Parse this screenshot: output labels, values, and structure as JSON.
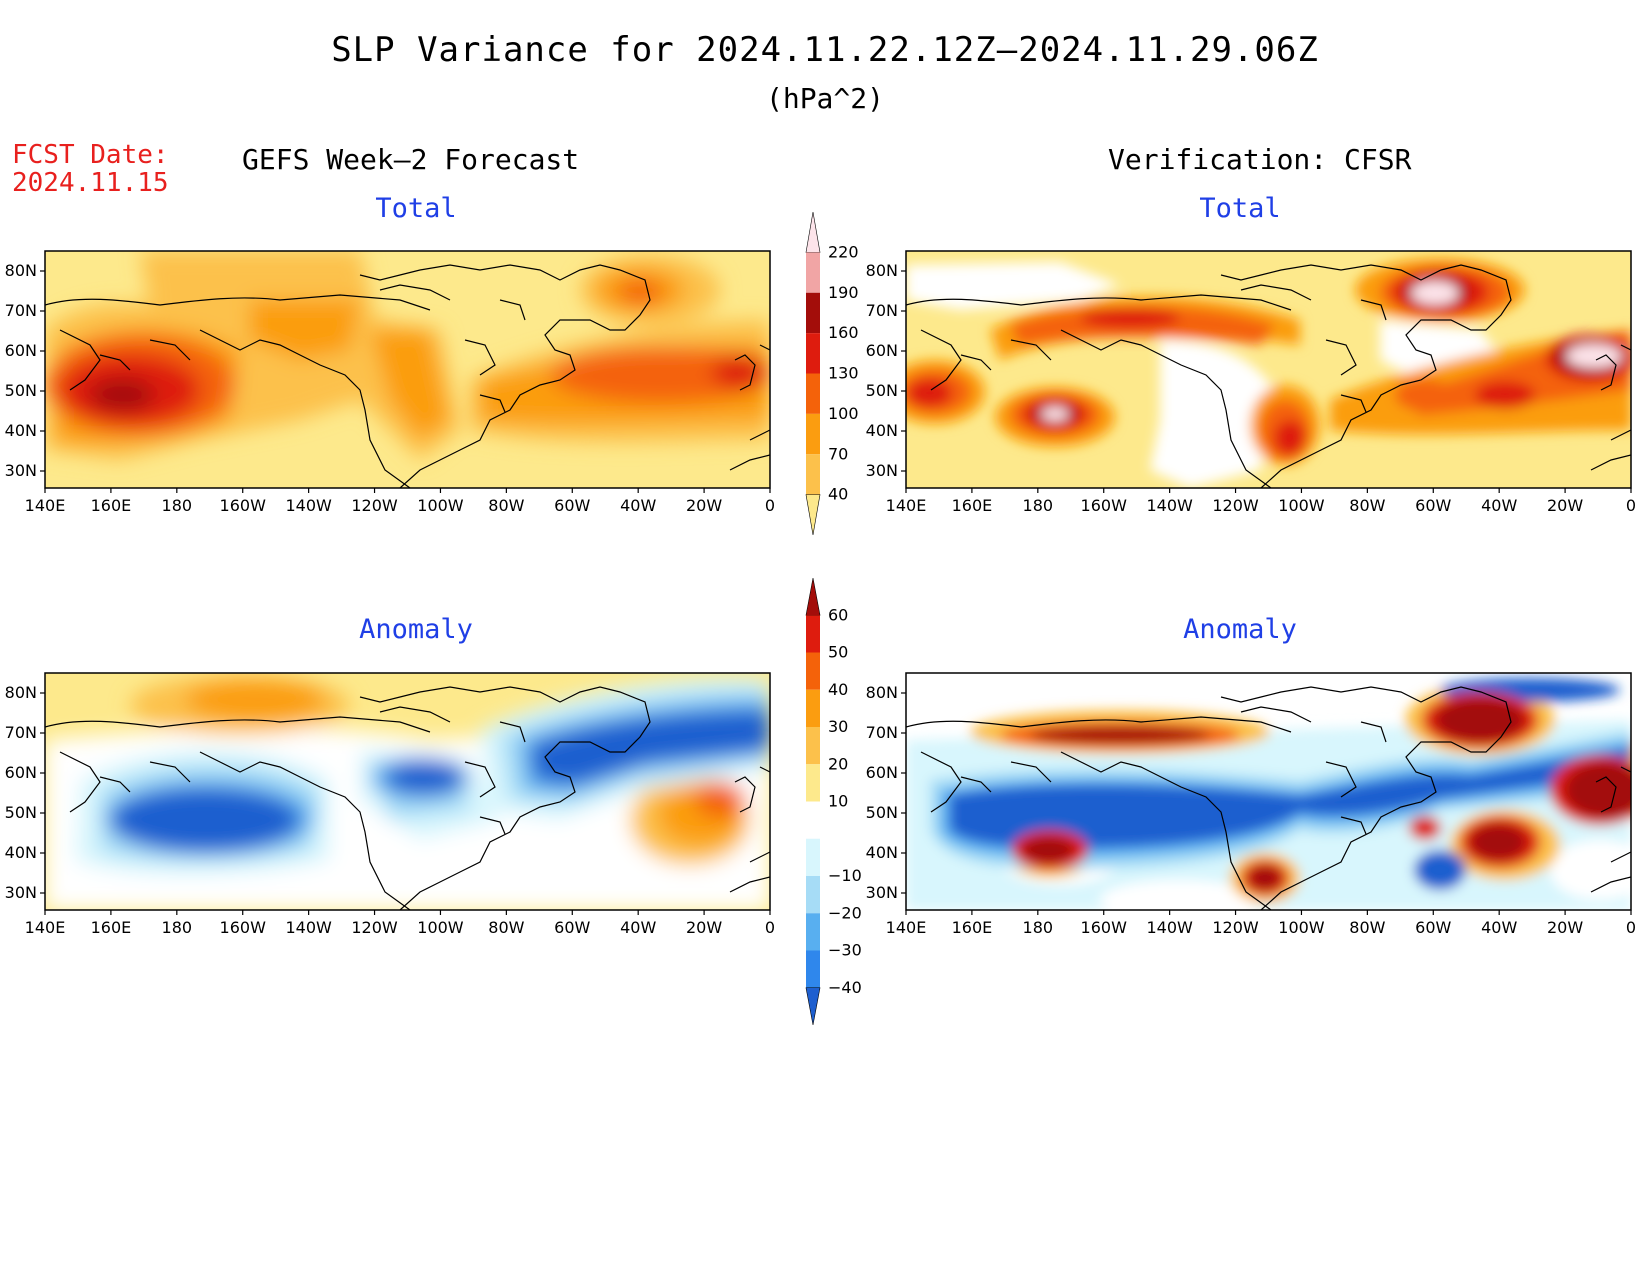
{
  "title": "SLP Variance for 2024.11.22.12Z—2024.11.29.06Z",
  "units": "(hPa^2)",
  "fcst_date_label": "FCST Date:",
  "fcst_date": "2024.11.15",
  "left_header": "GEFS Week—2 Forecast",
  "right_header": "Verification: CFSR",
  "panels": {
    "total_title": "Total",
    "anomaly_title": "Anomaly"
  },
  "lat_labels": [
    "80N",
    "70N",
    "60N",
    "50N",
    "40N",
    "30N"
  ],
  "lon_labels": [
    "140E",
    "160E",
    "180",
    "160W",
    "140W",
    "120W",
    "100W",
    "80W",
    "60W",
    "40W",
    "20W",
    "0"
  ],
  "total_colorbar": {
    "levels": [
      "40",
      "70",
      "100",
      "130",
      "160",
      "190",
      "220"
    ],
    "colors": [
      "#fde98c",
      "#fcc14b",
      "#fb9d10",
      "#f4620a",
      "#de1c0e",
      "#a30d0a",
      "#f1a5a5",
      "#fde4ea"
    ]
  },
  "anomaly_colorbar": {
    "levels": [
      "60",
      "50",
      "40",
      "30",
      "20",
      "10",
      "−10",
      "−20",
      "−30",
      "−40"
    ],
    "colors": [
      "#a30d0a",
      "#de1c0e",
      "#f4620a",
      "#fb9d10",
      "#fcc14b",
      "#fde98c",
      "#ffffff",
      "#d8f6fd",
      "#a6dcf6",
      "#58aff0",
      "#2f87ec",
      "#1e5fcf"
    ]
  }
}
